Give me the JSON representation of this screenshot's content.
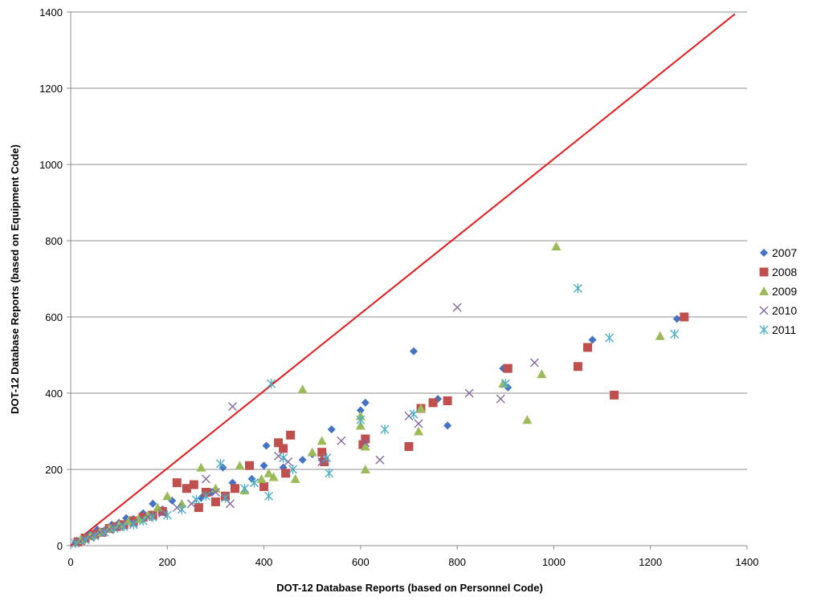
{
  "chart_data": {
    "type": "scatter",
    "title": "",
    "xlabel": "DOT-12 Database Reports (based on Personnel Code)",
    "ylabel": "DOT-12 Database Reports (based on Equipment Code)",
    "xlim": [
      0,
      1400
    ],
    "ylim": [
      0,
      1400
    ],
    "xticks": [
      "0",
      "200",
      "400",
      "600",
      "800",
      "1000",
      "1200",
      "1400"
    ],
    "yticks": [
      "0",
      "200",
      "400",
      "600",
      "800",
      "1000",
      "1200",
      "1400"
    ],
    "grid": "horizontal",
    "legend_position": "right",
    "reference_line": {
      "color": "#e31a1c",
      "points": [
        [
          0,
          0
        ],
        [
          1375,
          1395
        ]
      ]
    },
    "series": [
      {
        "name": "2007",
        "marker": "diamond",
        "color": "#4472c4",
        "points": [
          [
            10,
            8
          ],
          [
            25,
            18
          ],
          [
            40,
            30
          ],
          [
            55,
            42
          ],
          [
            70,
            40
          ],
          [
            85,
            55
          ],
          [
            100,
            60
          ],
          [
            115,
            72
          ],
          [
            130,
            70
          ],
          [
            150,
            85
          ],
          [
            170,
            110
          ],
          [
            190,
            95
          ],
          [
            210,
            118
          ],
          [
            240,
            150
          ],
          [
            270,
            125
          ],
          [
            290,
            140
          ],
          [
            315,
            205
          ],
          [
            335,
            165
          ],
          [
            375,
            175
          ],
          [
            400,
            210
          ],
          [
            405,
            262
          ],
          [
            440,
            205
          ],
          [
            480,
            225
          ],
          [
            500,
            240
          ],
          [
            520,
            225
          ],
          [
            540,
            305
          ],
          [
            600,
            355
          ],
          [
            610,
            375
          ],
          [
            710,
            510
          ],
          [
            760,
            385
          ],
          [
            780,
            315
          ],
          [
            895,
            465
          ],
          [
            905,
            415
          ],
          [
            1080,
            540
          ],
          [
            1255,
            595
          ]
        ]
      },
      {
        "name": "2008",
        "marker": "square",
        "color": "#c0504d",
        "points": [
          [
            15,
            10
          ],
          [
            30,
            20
          ],
          [
            50,
            30
          ],
          [
            65,
            35
          ],
          [
            80,
            45
          ],
          [
            95,
            50
          ],
          [
            110,
            55
          ],
          [
            130,
            65
          ],
          [
            150,
            75
          ],
          [
            170,
            80
          ],
          [
            190,
            90
          ],
          [
            220,
            165
          ],
          [
            240,
            150
          ],
          [
            255,
            160
          ],
          [
            265,
            100
          ],
          [
            280,
            140
          ],
          [
            300,
            115
          ],
          [
            320,
            130
          ],
          [
            340,
            150
          ],
          [
            370,
            210
          ],
          [
            400,
            155
          ],
          [
            430,
            270
          ],
          [
            440,
            255
          ],
          [
            445,
            190
          ],
          [
            455,
            290
          ],
          [
            520,
            245
          ],
          [
            525,
            220
          ],
          [
            605,
            265
          ],
          [
            610,
            280
          ],
          [
            700,
            260
          ],
          [
            725,
            360
          ],
          [
            750,
            375
          ],
          [
            780,
            380
          ],
          [
            905,
            465
          ],
          [
            1050,
            470
          ],
          [
            1070,
            520
          ],
          [
            1125,
            395
          ],
          [
            1270,
            600
          ]
        ]
      },
      {
        "name": "2009",
        "marker": "triangle",
        "color": "#9bbb59",
        "points": [
          [
            20,
            15
          ],
          [
            40,
            25
          ],
          [
            60,
            35
          ],
          [
            80,
            45
          ],
          [
            100,
            55
          ],
          [
            120,
            65
          ],
          [
            140,
            70
          ],
          [
            160,
            80
          ],
          [
            180,
            100
          ],
          [
            200,
            130
          ],
          [
            230,
            110
          ],
          [
            270,
            205
          ],
          [
            300,
            150
          ],
          [
            350,
            210
          ],
          [
            360,
            145
          ],
          [
            395,
            175
          ],
          [
            410,
            190
          ],
          [
            420,
            180
          ],
          [
            465,
            175
          ],
          [
            480,
            410
          ],
          [
            500,
            245
          ],
          [
            520,
            275
          ],
          [
            600,
            315
          ],
          [
            600,
            340
          ],
          [
            610,
            200
          ],
          [
            610,
            260
          ],
          [
            720,
            300
          ],
          [
            725,
            360
          ],
          [
            895,
            425
          ],
          [
            945,
            330
          ],
          [
            975,
            450
          ],
          [
            1005,
            785
          ],
          [
            1220,
            550
          ]
        ]
      },
      {
        "name": "2010",
        "marker": "x",
        "color": "#8064a2",
        "points": [
          [
            20,
            12
          ],
          [
            40,
            22
          ],
          [
            60,
            35
          ],
          [
            80,
            42
          ],
          [
            100,
            50
          ],
          [
            130,
            60
          ],
          [
            160,
            75
          ],
          [
            190,
            85
          ],
          [
            220,
            100
          ],
          [
            250,
            110
          ],
          [
            280,
            175
          ],
          [
            300,
            140
          ],
          [
            330,
            110
          ],
          [
            335,
            365
          ],
          [
            380,
            165
          ],
          [
            430,
            235
          ],
          [
            450,
            220
          ],
          [
            520,
            220
          ],
          [
            560,
            275
          ],
          [
            610,
            270
          ],
          [
            640,
            225
          ],
          [
            700,
            340
          ],
          [
            720,
            320
          ],
          [
            800,
            625
          ],
          [
            825,
            400
          ],
          [
            890,
            385
          ],
          [
            960,
            480
          ]
        ]
      },
      {
        "name": "2011",
        "marker": "asterisk",
        "color": "#4bacc6",
        "points": [
          [
            10,
            6
          ],
          [
            30,
            15
          ],
          [
            50,
            25
          ],
          [
            70,
            35
          ],
          [
            90,
            45
          ],
          [
            110,
            50
          ],
          [
            130,
            55
          ],
          [
            150,
            65
          ],
          [
            170,
            75
          ],
          [
            200,
            80
          ],
          [
            230,
            95
          ],
          [
            260,
            120
          ],
          [
            280,
            130
          ],
          [
            310,
            215
          ],
          [
            320,
            125
          ],
          [
            360,
            150
          ],
          [
            380,
            165
          ],
          [
            410,
            130
          ],
          [
            415,
            425
          ],
          [
            440,
            230
          ],
          [
            460,
            200
          ],
          [
            530,
            230
          ],
          [
            535,
            190
          ],
          [
            600,
            330
          ],
          [
            650,
            305
          ],
          [
            710,
            345
          ],
          [
            900,
            425
          ],
          [
            1050,
            675
          ],
          [
            1115,
            545
          ],
          [
            1250,
            555
          ]
        ]
      }
    ]
  }
}
